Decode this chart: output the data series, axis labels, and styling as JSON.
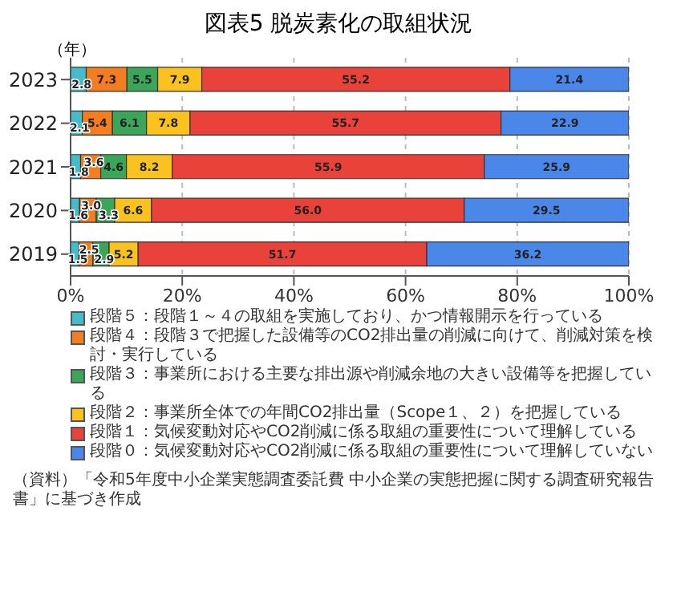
{
  "chart_data": {
    "type": "bar",
    "orientation": "horizontal",
    "stacked": true,
    "title": "図表5 脱炭素化の取組状況",
    "ylabel": "（年）",
    "categories": [
      "2023",
      "2022",
      "2021",
      "2020",
      "2019"
    ],
    "series": [
      {
        "name": "段階５：段階１～４の取組を実施しており、かつ情報開示を行っている",
        "color": "#46bccb",
        "values": [
          2.8,
          2.1,
          1.8,
          1.6,
          1.5
        ],
        "value_labels": [
          "2.8",
          "2.1",
          "1.8",
          "1.6",
          "1.5"
        ]
      },
      {
        "name": "段階４：段階３で把握した設備等のCO2排出量の削減に向けて、削減対策を検討・実行している",
        "color": "#f37d21",
        "values": [
          7.3,
          5.4,
          3.6,
          3.0,
          2.5
        ],
        "value_labels": [
          "7.3",
          "5.4",
          "3.6",
          "3.0",
          "2.5"
        ]
      },
      {
        "name": "段階３：事業所における主要な排出源や削減余地の大きい設備等を把握している",
        "color": "#3ba55a",
        "values": [
          5.5,
          6.1,
          4.6,
          3.3,
          2.9
        ],
        "value_labels": [
          "5.5",
          "6.1",
          "4.6",
          "3.3",
          "2.9"
        ]
      },
      {
        "name": "段階２：事業所全体での年間CO2排出量（Scope１、２）を把握している",
        "color": "#f9c21e",
        "values": [
          7.9,
          7.8,
          8.2,
          6.6,
          5.2
        ],
        "value_labels": [
          "7.9",
          "7.8",
          "8.2",
          "6.6",
          "5.2"
        ]
      },
      {
        "name": "段階１：気候変動対応やCO2削減に係る取組の重要性について理解している",
        "color": "#e8423a",
        "values": [
          55.2,
          55.7,
          55.9,
          56.0,
          51.7
        ],
        "value_labels": [
          "55.2",
          "55.7",
          "55.9",
          "56.0",
          "51.7"
        ]
      },
      {
        "name": "段階０：気候変動対応やCO2削減に係る取組の重要性について理解していない",
        "color": "#4a87e8",
        "values": [
          21.4,
          22.9,
          25.9,
          29.5,
          36.2
        ],
        "value_labels": [
          "21.4",
          "22.9",
          "25.9",
          "29.5",
          "36.2"
        ]
      }
    ],
    "xlim": [
      0,
      100
    ],
    "xticks": [
      {
        "value": 0,
        "label": "0%"
      },
      {
        "value": 20,
        "label": "20%"
      },
      {
        "value": 40,
        "label": "40%"
      },
      {
        "value": 60,
        "label": "60%"
      },
      {
        "value": 80,
        "label": "80%"
      },
      {
        "value": 100,
        "label": "100%"
      }
    ],
    "grid": "x",
    "legend": "bottom",
    "annotations": [
      "（資料）「令和5年度中小企業実態調査委託費 中小企業の実態把握に関する調査研究報告書」に基づき作成"
    ]
  }
}
